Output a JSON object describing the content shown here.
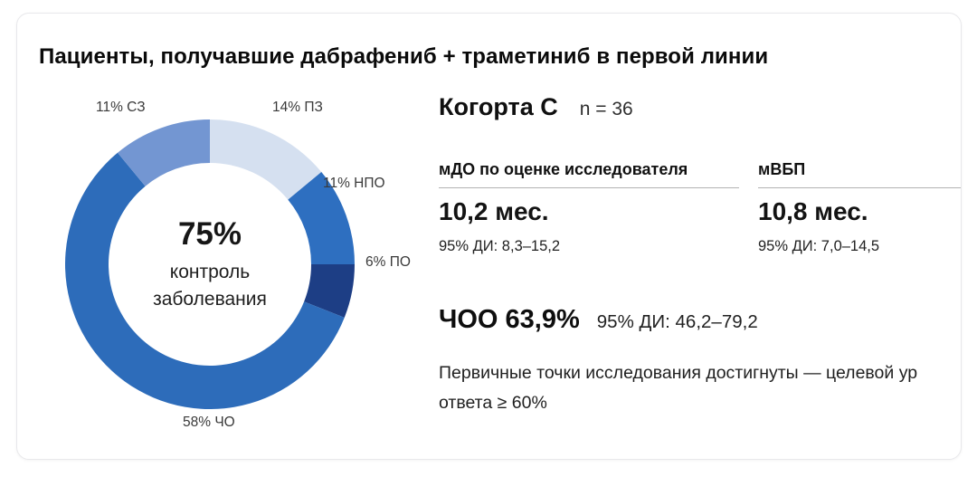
{
  "title": "Пациенты, получавшие дабрафениб + траметиниб в первой линии",
  "chart_data": {
    "type": "pie",
    "donut": true,
    "start_angle_deg": 0,
    "direction": "clockwise",
    "center": {
      "value": "75%",
      "line1": "контроль",
      "line2": "заболевания"
    },
    "segments": [
      {
        "code": "pz",
        "label": "14% ПЗ",
        "value": 14,
        "color": "#d5e0f0"
      },
      {
        "code": "npo",
        "label": "11% НПО",
        "value": 11,
        "color": "#2e6fc0"
      },
      {
        "code": "po",
        "label": "6% ПО",
        "value": 6,
        "color": "#1d3e85"
      },
      {
        "code": "cho",
        "label": "58% ЧО",
        "value": 58,
        "color": "#2d6cba"
      },
      {
        "code": "sz",
        "label": "11% СЗ",
        "value": 11,
        "color": "#7396d2"
      }
    ]
  },
  "cohort": {
    "title": "Когорта C",
    "n": "n = 36"
  },
  "metrics": [
    {
      "header": "мДО по оценке исследователя",
      "value": "10,2 мес.",
      "ci": "95% ДИ: 8,3–15,2"
    },
    {
      "header": "мВБП",
      "value": "10,8 мес.",
      "ci": "95% ДИ: 7,0–14,5"
    }
  ],
  "orr": {
    "label": "ЧОО 63,9%",
    "ci": "95% ДИ: 46,2–79,2"
  },
  "footnote": {
    "line1": "Первичные точки исследования достигнуты — целевой ур",
    "line2": "ответа ≥ 60%"
  }
}
